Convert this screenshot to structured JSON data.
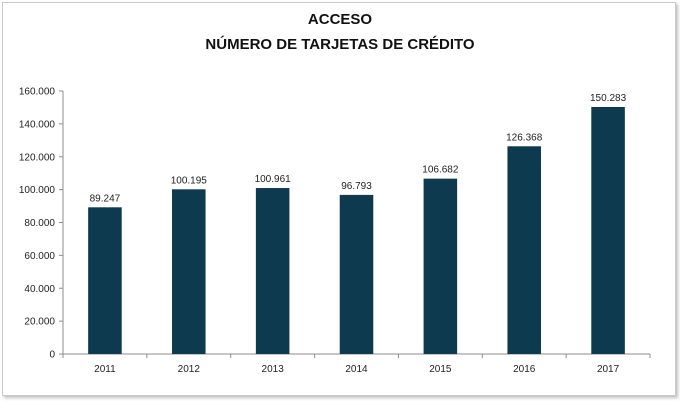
{
  "chart_data": {
    "type": "bar",
    "title": "ACCESO",
    "subtitle": "NÚMERO DE TARJETAS DE CRÉDITO",
    "xlabel": "",
    "ylabel": "",
    "categories": [
      "2011",
      "2012",
      "2013",
      "2014",
      "2015",
      "2016",
      "2017"
    ],
    "values": [
      89247,
      100195,
      100961,
      96793,
      106682,
      126368,
      150283
    ],
    "value_labels": [
      "89.247",
      "100.195",
      "100.961",
      "96.793",
      "106.682",
      "126.368",
      "150.283"
    ],
    "ylim": [
      0,
      160000
    ],
    "yticks": [
      0,
      20000,
      40000,
      60000,
      80000,
      100000,
      120000,
      140000,
      160000
    ],
    "ytick_labels": [
      "0",
      "20.000",
      "40.000",
      "60.000",
      "80.000",
      "100.000",
      "120.000",
      "140.000",
      "160.000"
    ],
    "grid": false,
    "legend": "none",
    "bar_color": "#0d3a4e"
  }
}
